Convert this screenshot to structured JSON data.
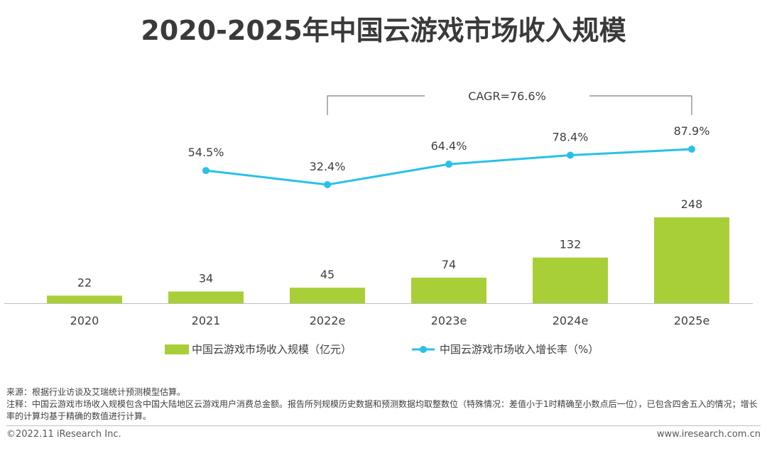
{
  "title": "2020-2025年中国云游戏市场收入规模",
  "chart_data": {
    "type": "bar",
    "categories": [
      "2020",
      "2021",
      "2022e",
      "2023e",
      "2024e",
      "2025e"
    ],
    "series": [
      {
        "name": "中国云游戏市场收入规模（亿元）",
        "type": "bar",
        "values": [
          22,
          34,
          45,
          74,
          132,
          248
        ],
        "labels": [
          "22",
          "34",
          "45",
          "74",
          "132",
          "248"
        ],
        "color": "#a9cf38"
      },
      {
        "name": "中国云游戏市场收入增长率（%）",
        "type": "line",
        "values": [
          null,
          54.5,
          32.4,
          64.4,
          78.4,
          87.9
        ],
        "labels": [
          "",
          "54.5%",
          "32.4%",
          "64.4%",
          "78.4%",
          "87.9%"
        ],
        "color": "#29c1e8"
      }
    ],
    "annotation": {
      "text": "CAGR=76.6%",
      "from_category": "2022e",
      "to_category": "2025e"
    },
    "legend_position": "bottom",
    "grid": false
  },
  "footer": {
    "source": "来源：根据行业访谈及艾瑞统计预测模型估算。",
    "note": "注释：中国云游戏市场收入规模包含中国大陆地区云游戏用户消费总金额。报告所列规模历史数据和预测数据均取整数位（特殊情况：差值小于1时精确至小数点后一位），已包含四舍五入的情况；增长率的计算均基于精确的数值进行计算。",
    "copyright": "©2022.11 iResearch Inc.",
    "website": "www.iresearch.com.cn"
  }
}
